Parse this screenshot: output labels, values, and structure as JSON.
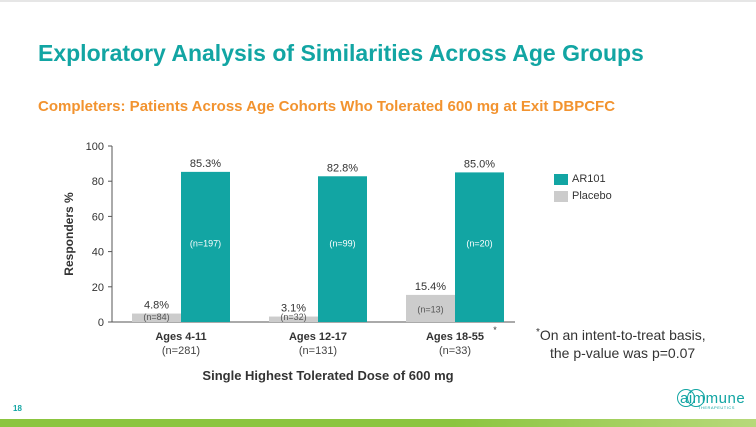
{
  "slide": {
    "title": "Exploratory Analysis of Similarities Across Age Groups",
    "subtitle": "Completers: Patients Across Age Cohorts Who Tolerated 600 mg at Exit DBPCFC",
    "page_number": "18",
    "footnote_star": "*",
    "footnote_line1": "On an intent-to-treat basis,",
    "footnote_line2": "the p-value was p=0.07",
    "logo_text": "aimmune",
    "logo_subtext": "THERAPEUTICS"
  },
  "colors": {
    "title": "#12a5a3",
    "subtitle": "#f2932f",
    "ar101": "#12a5a3",
    "placebo": "#cccccc",
    "accent_band": "#8bc53f"
  },
  "chart_data": {
    "type": "bar",
    "categories": [
      "Ages 4-11",
      "Ages 12-17",
      "Ages 18-55"
    ],
    "category_n": [
      "(n=281)",
      "(n=131)",
      "(n=33)"
    ],
    "category_markers": [
      "",
      "",
      "*"
    ],
    "series": [
      {
        "name": "Placebo",
        "values": [
          4.8,
          3.1,
          15.4
        ],
        "labels": [
          "4.8%",
          "3.1%",
          "15.4%"
        ],
        "n_labels": [
          "(n=84)",
          "(n=32)",
          "(n=13)"
        ],
        "color": "#cccccc"
      },
      {
        "name": "AR101",
        "values": [
          85.3,
          82.8,
          85.0
        ],
        "labels": [
          "85.3%",
          "82.8%",
          "85.0%"
        ],
        "n_labels": [
          "(n=197)",
          "(n=99)",
          "(n=20)"
        ],
        "color": "#12a5a3"
      }
    ],
    "legend_order": [
      "AR101",
      "Placebo"
    ],
    "legend_position": "right",
    "xlabel": "Single Highest Tolerated Dose of 600 mg",
    "ylabel": "Responders %",
    "ylim": [
      0,
      100
    ],
    "yticks": [
      0,
      20,
      40,
      60,
      80,
      100
    ],
    "grid": false
  }
}
